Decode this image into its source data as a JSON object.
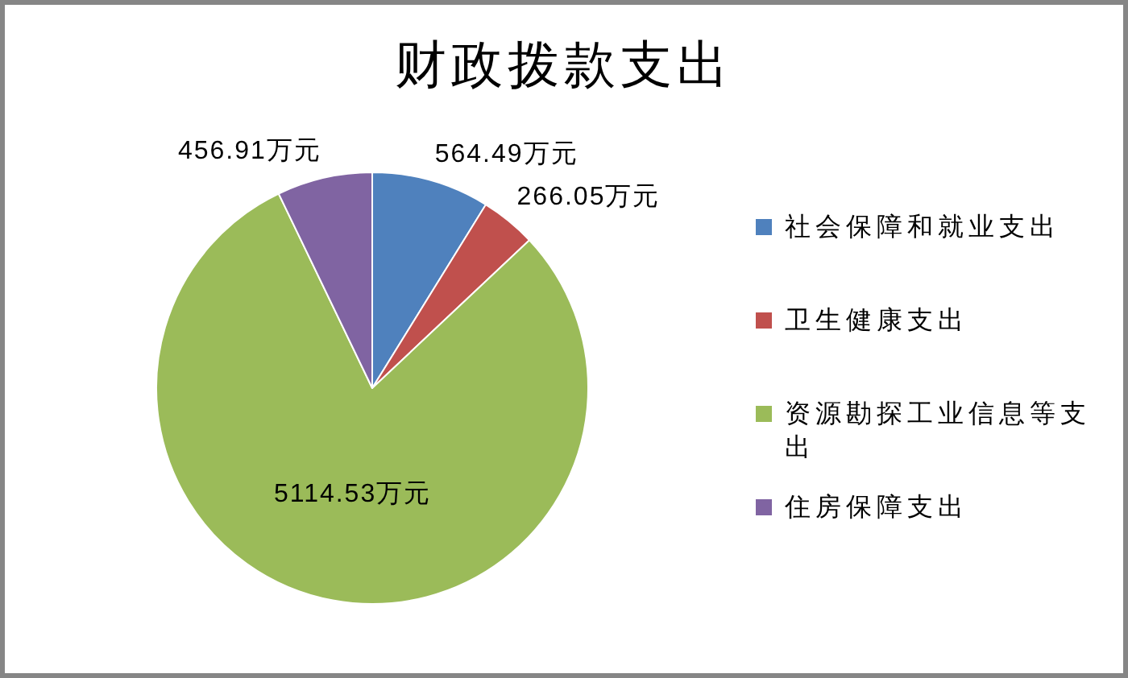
{
  "chart_data": {
    "type": "pie",
    "title": "财政拨款支出",
    "categories": [
      "社会保障和就业支出",
      "卫生健康支出",
      "资源勘探工业信息等支出",
      "住房保障支出"
    ],
    "values": [
      564.49,
      266.05,
      5114.53,
      456.91
    ],
    "colors": [
      "#4f81bd",
      "#c0504d",
      "#9bbb59",
      "#8064a2"
    ],
    "value_labels": [
      "564.49万元",
      "266.05万元",
      "5114.53万元",
      "456.91万元"
    ],
    "legend": "right"
  }
}
